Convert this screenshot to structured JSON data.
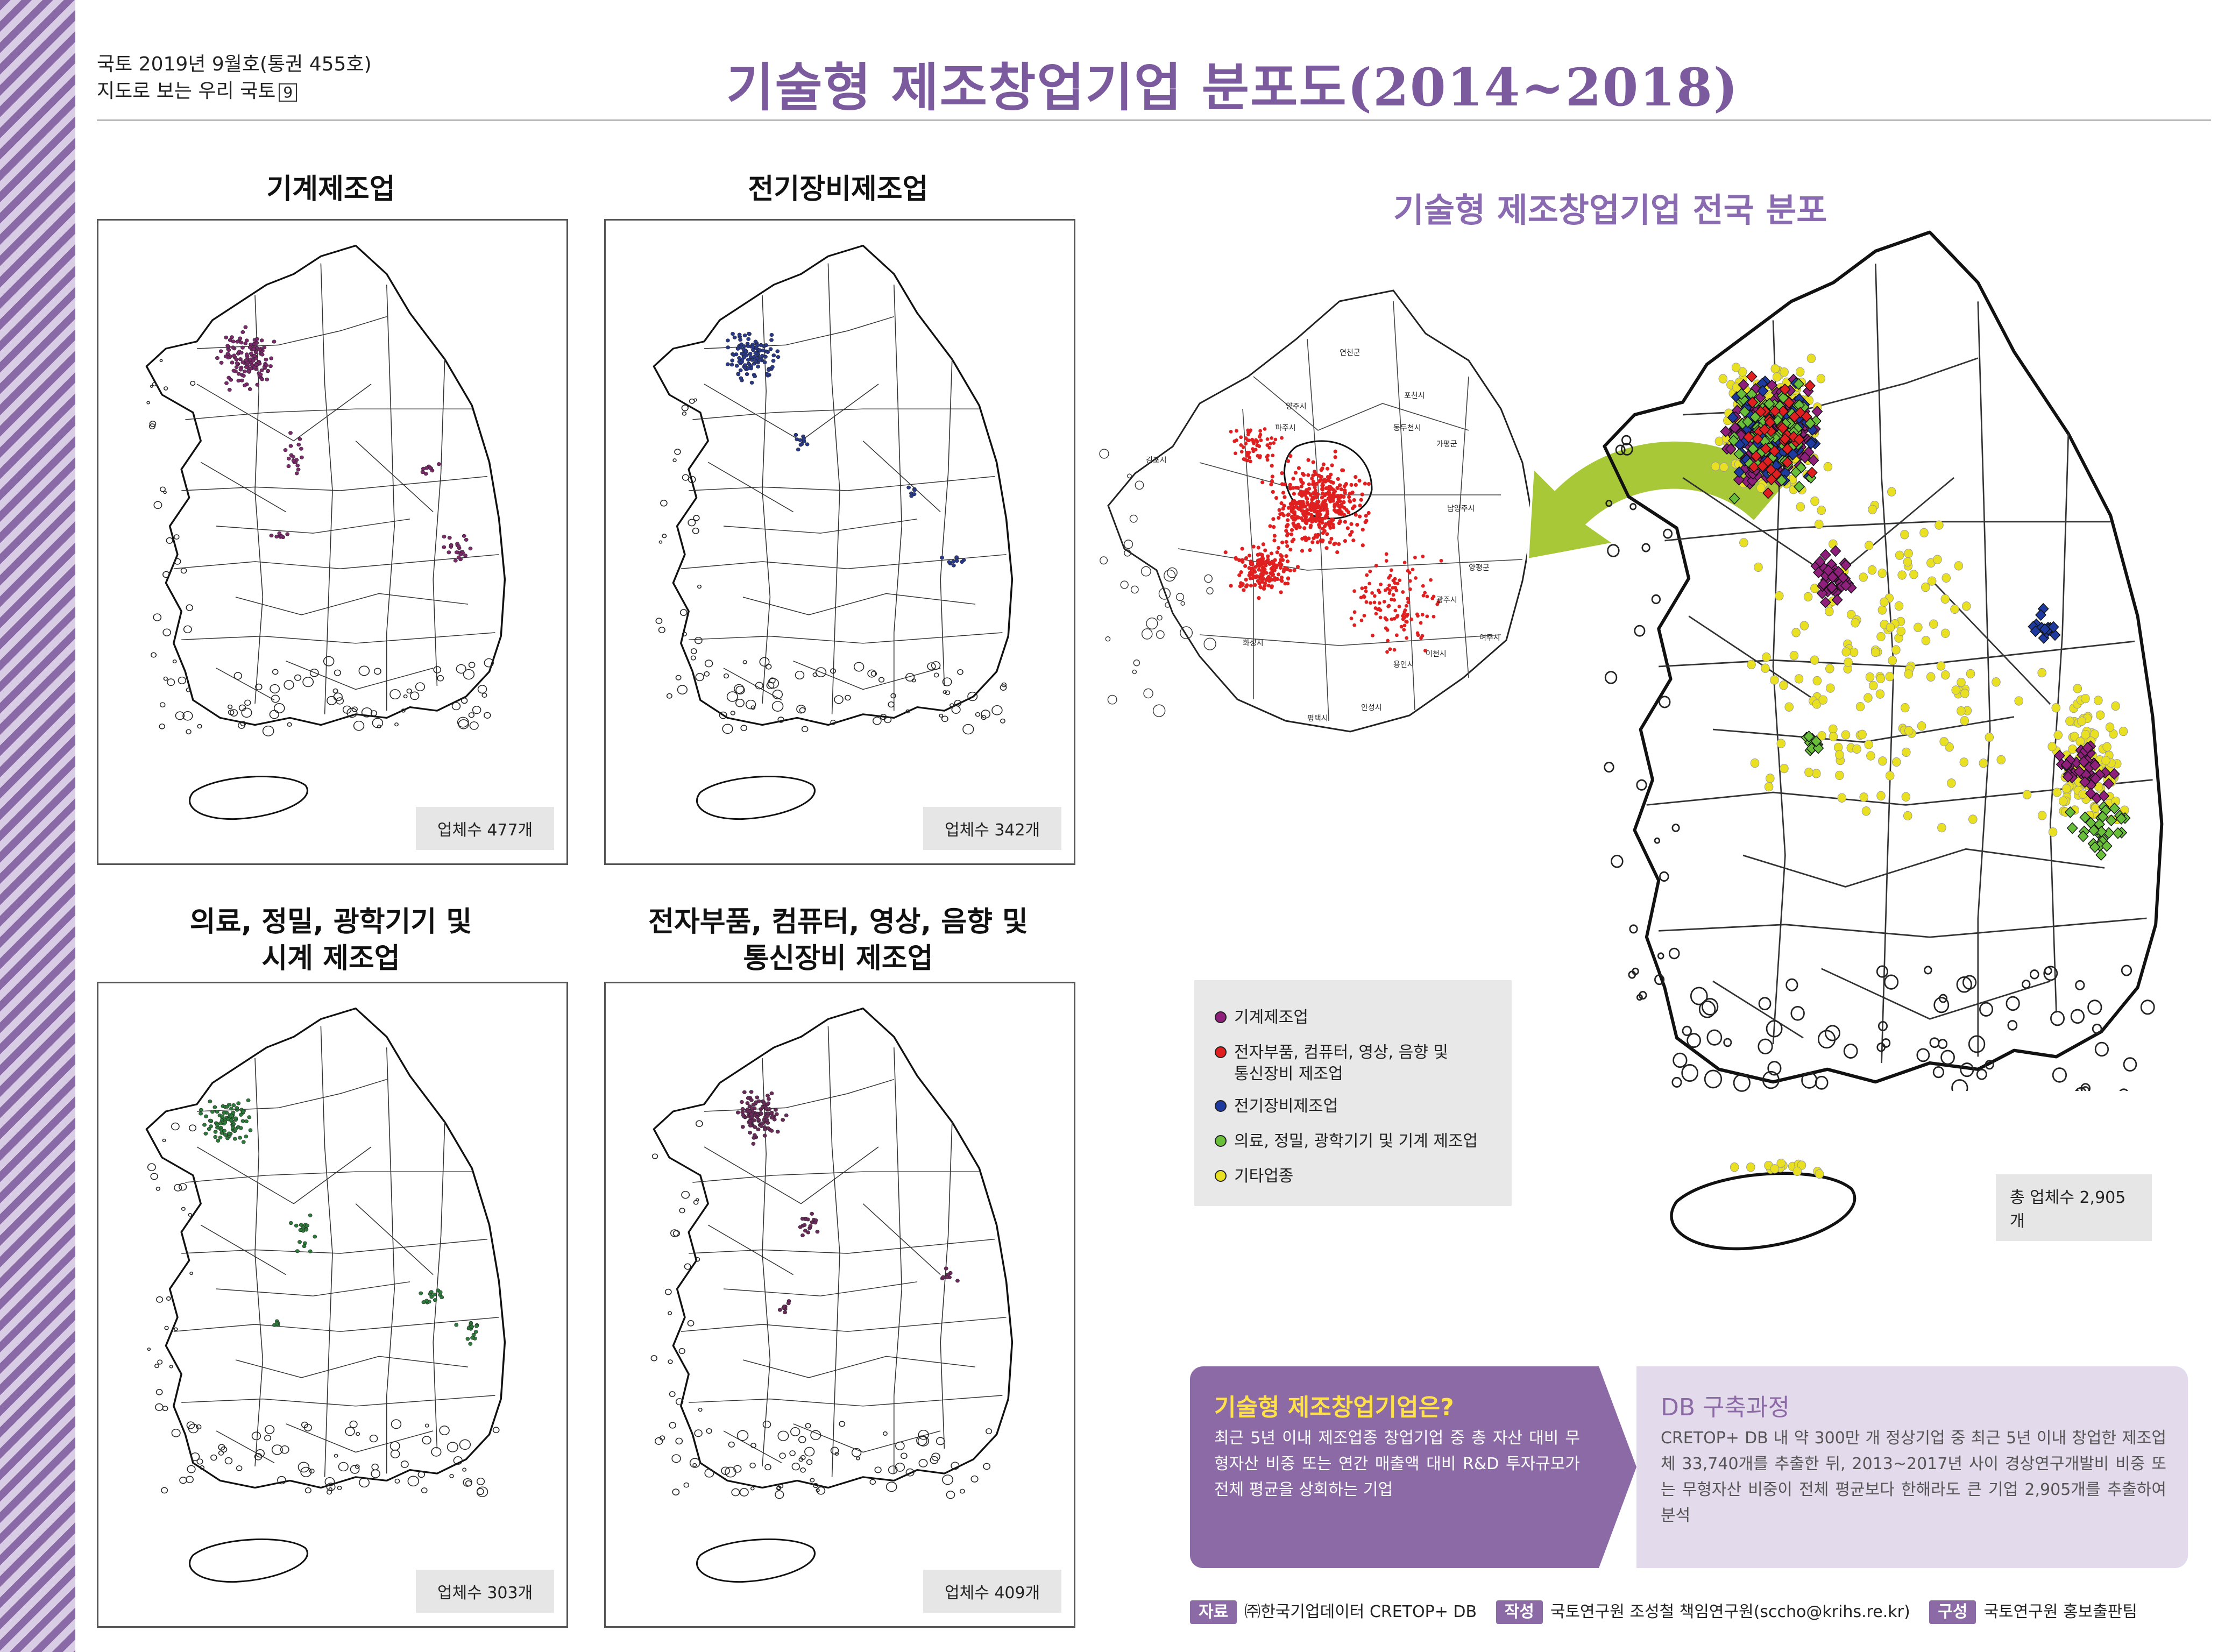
{
  "header": {
    "issue_line1": "국토 2019년 9월호(통권 455호)",
    "issue_line2": "지도로 보는 우리 국토",
    "issue_number": "9",
    "title": "기술형 제조창업기업 분포도(2014~2018)"
  },
  "panels": [
    {
      "title": "기계제조업",
      "count": "업체수 477개",
      "color": "#7a2a6a"
    },
    {
      "title": "전기장비제조업",
      "count": "업체수 342개",
      "color": "#2a3a8a"
    },
    {
      "title_line1": "의료, 정밀, 광학기기 및",
      "title_line2": "시계 제조업",
      "count": "업체수 303개",
      "color": "#2e7a3a"
    },
    {
      "title_line1": "전자부품, 컴퓨터, 영상, 음향 및",
      "title_line2": "통신장비 제조업",
      "count": "업체수 409개",
      "color": "#6a2a5a"
    }
  ],
  "national_map": {
    "title": "기술형 제조창업기업 전국 분포",
    "total": "총 업체수 2,905개",
    "inset_labels": [
      "연천군",
      "포천시",
      "동두천시",
      "파주시",
      "양주시",
      "가평군",
      "김포시",
      "남양주시",
      "양평군",
      "여주시",
      "이천시",
      "용인시",
      "안성시",
      "평택시",
      "화성시",
      "광주시"
    ]
  },
  "legend": [
    {
      "label": "기계제조업",
      "color": "#8e1f7a"
    },
    {
      "label_line1": "전자부품, 컴퓨터, 영상, 음향 및",
      "label_line2": "통신장비 제조업",
      "color": "#e02020"
    },
    {
      "label": "전기장비제조업",
      "color": "#1f3a9e"
    },
    {
      "label": "의료, 정밀, 광학기기 및 기계 제조업",
      "color": "#6abf3a"
    },
    {
      "label": "기타업종",
      "color": "#e8e020"
    }
  ],
  "info": {
    "left_title": "기술형 제조창업기업은?",
    "left_body": "최근 5년 이내 제조업종 창업기업 중 총 자산 대비 무형자산 비중 또는 연간 매출액 대비 R&D 투자규모가 전체 평균을 상회하는 기업",
    "right_title": "DB 구축과정",
    "right_body": "CRETOP+ DB 내 약 300만 개 정상기업 중 최근 5년 이내 창업한 제조업체 33,740개를 추출한 뒤, 2013~2017년 사이 경상연구개발비 비중 또는 무형자산 비중이 전체 평균보다 한해라도 큰 기업 2,905개를 추출하여 분석"
  },
  "footer": {
    "source_tag": "자료",
    "source": "㈜한국기업데이터 CRETOP+ DB",
    "author_tag": "작성",
    "author": "국토연구원 조성철 책임연구원(sccho@krihs.re.kr)",
    "design_tag": "구성",
    "design": "국토연구원 홍보출판팀"
  }
}
